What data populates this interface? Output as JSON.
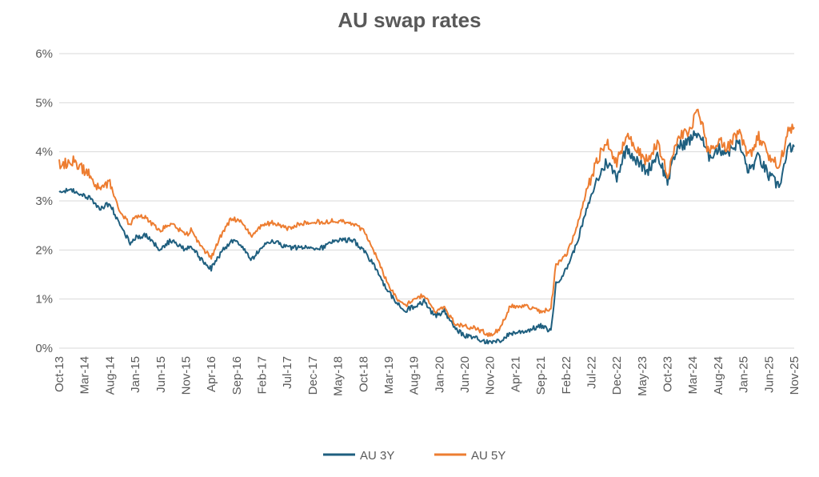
{
  "chart_data": {
    "type": "line",
    "title": "AU swap rates",
    "xlabel": "",
    "ylabel": "",
    "ylim": [
      0,
      6
    ],
    "y_ticks": [
      0,
      1,
      2,
      3,
      4,
      5,
      6
    ],
    "y_tick_labels": [
      "0%",
      "1%",
      "2%",
      "3%",
      "4%",
      "5%",
      "6%"
    ],
    "x_range": [
      0,
      145
    ],
    "x_tick_positions": [
      0,
      5,
      10,
      15,
      20,
      25,
      30,
      35,
      40,
      45,
      50,
      55,
      60,
      65,
      70,
      75,
      80,
      85,
      90,
      95,
      100,
      105,
      110,
      115,
      120,
      125,
      130,
      135,
      140,
      145
    ],
    "x_tick_labels": [
      "Oct-13",
      "Mar-14",
      "Aug-14",
      "Jan-15",
      "Jun-15",
      "Nov-15",
      "Apr-16",
      "Sep-16",
      "Feb-17",
      "Jul-17",
      "Dec-17",
      "May-18",
      "Oct-18",
      "Mar-19",
      "Aug-19",
      "Jan-20",
      "Jun-20",
      "Nov-20",
      "Apr-21",
      "Sep-21",
      "Feb-22",
      "Jul-22",
      "Dec-22",
      "May-23",
      "Oct-23",
      "Mar-24",
      "Aug-24",
      "Jan-25",
      "Jun-25",
      "Nov-25"
    ],
    "grid": true,
    "legend_position": "bottom",
    "series": [
      {
        "name": "AU 3Y",
        "color": "#1f5f7f",
        "points": [
          [
            0,
            3.2
          ],
          [
            3,
            3.2
          ],
          [
            6,
            3.05
          ],
          [
            8,
            2.85
          ],
          [
            10,
            2.95
          ],
          [
            12,
            2.5
          ],
          [
            14,
            2.15
          ],
          [
            15,
            2.25
          ],
          [
            17,
            2.3
          ],
          [
            20,
            2.0
          ],
          [
            22,
            2.2
          ],
          [
            25,
            2.0
          ],
          [
            26,
            2.1
          ],
          [
            28,
            1.8
          ],
          [
            30,
            1.62
          ],
          [
            32,
            1.95
          ],
          [
            34,
            2.2
          ],
          [
            36,
            2.1
          ],
          [
            38,
            1.8
          ],
          [
            40,
            2.05
          ],
          [
            42,
            2.2
          ],
          [
            45,
            2.05
          ],
          [
            50,
            2.05
          ],
          [
            52,
            2.05
          ],
          [
            54,
            2.2
          ],
          [
            58,
            2.2
          ],
          [
            60,
            2.0
          ],
          [
            62,
            1.7
          ],
          [
            64,
            1.3
          ],
          [
            66,
            1.0
          ],
          [
            68,
            0.75
          ],
          [
            70,
            0.85
          ],
          [
            72,
            0.95
          ],
          [
            74,
            0.65
          ],
          [
            76,
            0.75
          ],
          [
            78,
            0.4
          ],
          [
            80,
            0.25
          ],
          [
            82,
            0.22
          ],
          [
            85,
            0.1
          ],
          [
            87,
            0.15
          ],
          [
            89,
            0.3
          ],
          [
            92,
            0.35
          ],
          [
            95,
            0.45
          ],
          [
            97,
            0.35
          ],
          [
            98,
            1.3
          ],
          [
            100,
            1.6
          ],
          [
            102,
            2.1
          ],
          [
            104,
            2.8
          ],
          [
            106,
            3.4
          ],
          [
            108,
            3.8
          ],
          [
            110,
            3.5
          ],
          [
            112,
            4.1
          ],
          [
            114,
            3.8
          ],
          [
            116,
            3.6
          ],
          [
            118,
            3.95
          ],
          [
            120,
            3.4
          ],
          [
            122,
            4.1
          ],
          [
            124,
            4.2
          ],
          [
            126,
            4.4
          ],
          [
            127,
            4.2
          ],
          [
            128,
            3.9
          ],
          [
            130,
            4.05
          ],
          [
            132,
            4.0
          ],
          [
            134,
            4.2
          ],
          [
            136,
            3.6
          ],
          [
            138,
            3.9
          ],
          [
            140,
            3.5
          ],
          [
            142,
            3.3
          ],
          [
            144,
            4.1
          ],
          [
            145,
            4.1
          ]
        ]
      },
      {
        "name": "AU 5Y",
        "color": "#ed7d31",
        "points": [
          [
            0,
            3.75
          ],
          [
            3,
            3.8
          ],
          [
            6,
            3.55
          ],
          [
            8,
            3.25
          ],
          [
            10,
            3.35
          ],
          [
            12,
            2.8
          ],
          [
            14,
            2.5
          ],
          [
            15,
            2.7
          ],
          [
            17,
            2.65
          ],
          [
            20,
            2.4
          ],
          [
            22,
            2.55
          ],
          [
            25,
            2.3
          ],
          [
            26,
            2.4
          ],
          [
            28,
            2.05
          ],
          [
            30,
            1.85
          ],
          [
            32,
            2.3
          ],
          [
            34,
            2.65
          ],
          [
            36,
            2.55
          ],
          [
            38,
            2.3
          ],
          [
            40,
            2.5
          ],
          [
            42,
            2.55
          ],
          [
            45,
            2.45
          ],
          [
            50,
            2.6
          ],
          [
            52,
            2.55
          ],
          [
            54,
            2.6
          ],
          [
            58,
            2.55
          ],
          [
            60,
            2.4
          ],
          [
            62,
            2.0
          ],
          [
            64,
            1.5
          ],
          [
            66,
            1.1
          ],
          [
            68,
            0.85
          ],
          [
            70,
            1.0
          ],
          [
            72,
            1.1
          ],
          [
            74,
            0.75
          ],
          [
            76,
            0.85
          ],
          [
            78,
            0.5
          ],
          [
            80,
            0.45
          ],
          [
            82,
            0.4
          ],
          [
            85,
            0.27
          ],
          [
            87,
            0.4
          ],
          [
            89,
            0.85
          ],
          [
            92,
            0.85
          ],
          [
            95,
            0.75
          ],
          [
            97,
            0.8
          ],
          [
            98,
            1.7
          ],
          [
            100,
            1.9
          ],
          [
            102,
            2.4
          ],
          [
            104,
            3.2
          ],
          [
            106,
            3.8
          ],
          [
            108,
            4.2
          ],
          [
            110,
            3.8
          ],
          [
            112,
            4.3
          ],
          [
            114,
            4.05
          ],
          [
            116,
            3.8
          ],
          [
            118,
            4.2
          ],
          [
            120,
            3.55
          ],
          [
            122,
            4.3
          ],
          [
            124,
            4.4
          ],
          [
            126,
            4.8
          ],
          [
            127,
            4.5
          ],
          [
            128,
            4.0
          ],
          [
            130,
            4.2
          ],
          [
            132,
            4.1
          ],
          [
            134,
            4.4
          ],
          [
            136,
            3.9
          ],
          [
            138,
            4.3
          ],
          [
            140,
            3.9
          ],
          [
            142,
            3.7
          ],
          [
            144,
            4.5
          ],
          [
            145,
            4.5
          ]
        ]
      }
    ]
  }
}
